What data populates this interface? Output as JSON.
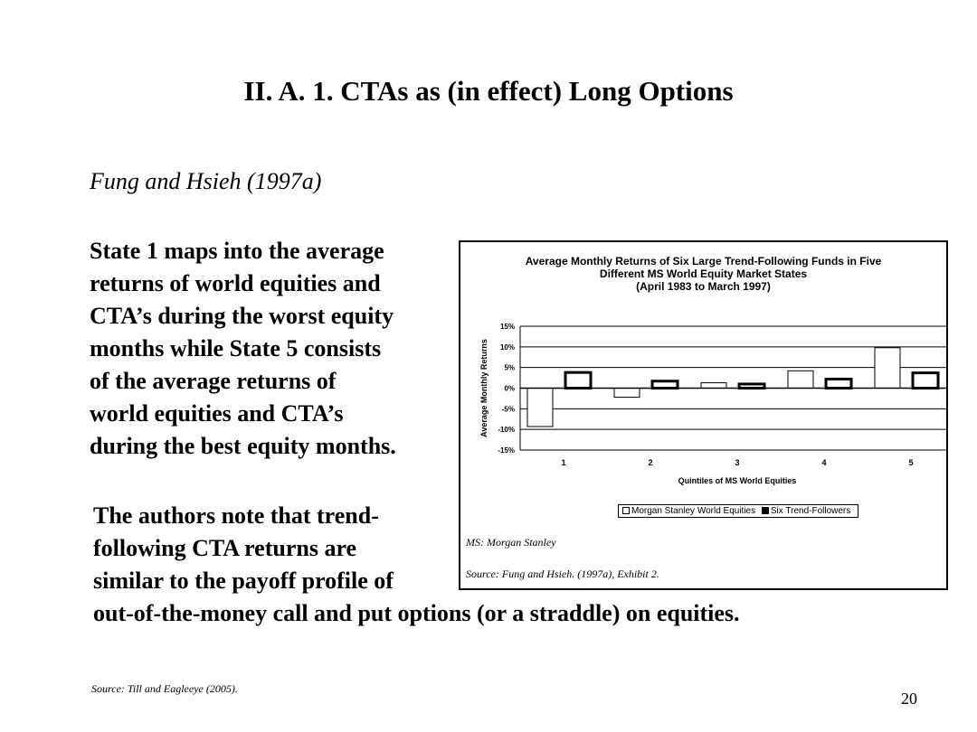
{
  "slide": {
    "title": "II.  A.  1. CTAs as (in effect) Long Options",
    "citation": "Fung and Hsieh (1997a)",
    "paragraph1_lines": [
      "State 1 maps into the average",
      "returns of world equities and",
      "CTA’s during the worst equity",
      "months while State 5 consists",
      "of the average returns of",
      "world equities and CTA’s",
      "during the best equity months."
    ],
    "paragraph2_lines": [
      "The authors note that trend-",
      "following CTA returns are",
      "similar to the payoff profile of",
      "out-of-the-money call and put options (or a straddle) on equities."
    ],
    "footer_source": "Source:  Till and Eagleeye (2005).",
    "page_number": "20"
  },
  "chart_note": "MS:  Morgan Stanley",
  "chart_source": "Source:  Fung and  Hsieh. (1997a), Exhibit 2.",
  "chart_data": {
    "type": "bar",
    "title_lines": [
      "Average Monthly Returns of Six Large Trend-Following Funds in Five",
      "Different MS World Equity Market States",
      "(April 1983 to March 1997)"
    ],
    "xlabel": "Quintiles of MS World Equities",
    "ylabel": "Average Monthly Returns",
    "categories": [
      "1",
      "2",
      "3",
      "4",
      "5"
    ],
    "yticks": [
      "15%",
      "10%",
      "5%",
      "0%",
      "-5%",
      "-10%",
      "-15%"
    ],
    "ylim": [
      -15,
      15
    ],
    "series": [
      {
        "name": "Morgan Stanley World Equities",
        "values": [
          -9.3,
          -2.2,
          1.3,
          4.2,
          9.8
        ],
        "fill": "#ffffff"
      },
      {
        "name": "Six Trend-Followers",
        "values": [
          3.8,
          1.7,
          1.0,
          2.2,
          3.7
        ],
        "fill": "#000000"
      }
    ],
    "grid": true,
    "legend": "bottom"
  }
}
